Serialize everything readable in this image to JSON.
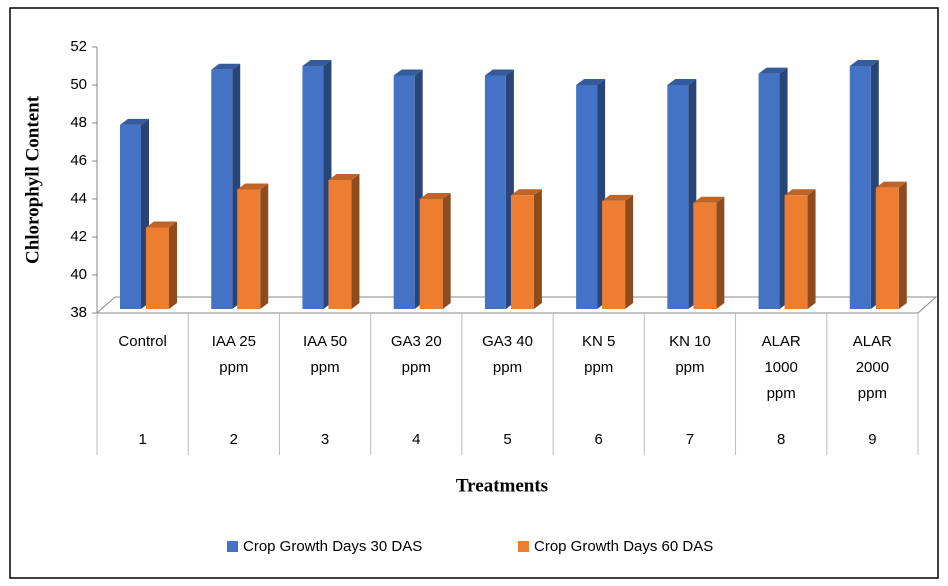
{
  "chart_data": {
    "type": "bar3d",
    "y_label": "Chlorophyll Content",
    "x_label": "Treatments",
    "categories": [
      "Control",
      "IAA 25 ppm",
      "IAA 50 ppm",
      "GA3 20 ppm",
      "GA3 40 ppm",
      "KN 5 ppm",
      "KN 10 ppm",
      "ALAR 1000 ppm",
      "ALAR 2000 ppm"
    ],
    "category_numbers": [
      "1",
      "2",
      "3",
      "4",
      "5",
      "6",
      "7",
      "8",
      "9"
    ],
    "series": [
      {
        "name": "Crop Growth Days 30 DAS",
        "color": "#4472c4",
        "values": [
          47.9,
          50.8,
          51.0,
          50.5,
          50.5,
          50.0,
          50.0,
          50.6,
          51.0
        ]
      },
      {
        "name": "Crop Growth Days 60 DAS",
        "color": "#ed7d31",
        "values": [
          42.5,
          44.5,
          45.0,
          44.0,
          44.2,
          43.9,
          43.8,
          44.2,
          44.6
        ]
      }
    ],
    "ylim": [
      38,
      52
    ],
    "yticks": [
      38,
      40,
      42,
      44,
      46,
      48,
      50,
      52
    ],
    "grid": false,
    "legend": "bottom"
  }
}
